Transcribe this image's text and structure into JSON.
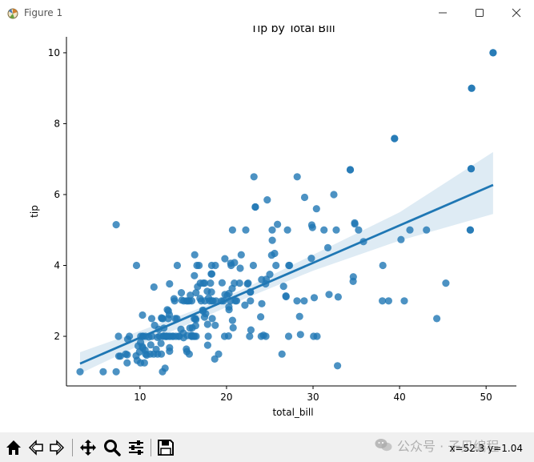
{
  "window": {
    "title": "Figure 1"
  },
  "watermark": {
    "text": "公众号 · 子贝编程"
  },
  "toolbar": {
    "buttons": [
      {
        "name": "home-button",
        "icon": "home-icon"
      },
      {
        "name": "back-button",
        "icon": "back-arrow-icon"
      },
      {
        "name": "forward-button",
        "icon": "forward-arrow-icon"
      },
      {
        "name": "pan-button",
        "icon": "pan-move-icon"
      },
      {
        "name": "zoom-button",
        "icon": "zoom-magnifier-icon"
      },
      {
        "name": "configure-subplots-button",
        "icon": "sliders-icon"
      },
      {
        "name": "save-button",
        "icon": "save-disk-icon"
      }
    ],
    "coords": "x=52.3 y=1.04"
  },
  "chart_data": {
    "type": "scatter",
    "title": "Tip by Total Bill",
    "xlabel": "total_bill",
    "ylabel": "tip",
    "xlim": [
      1.5,
      53.5
    ],
    "ylim": [
      0.6,
      10.45
    ],
    "xticks": [
      10,
      20,
      30,
      40,
      50
    ],
    "yticks": [
      2,
      4,
      6,
      8,
      10
    ],
    "grid": false,
    "point_color": "#1f77b4",
    "regression": {
      "x": [
        3.07,
        50.81
      ],
      "y": [
        1.23,
        6.27
      ]
    },
    "confidence_band": {
      "x": [
        3.07,
        10,
        17.5,
        22.5,
        30,
        40,
        50.81
      ],
      "lower": [
        0.95,
        1.75,
        2.55,
        3.1,
        3.85,
        4.7,
        5.45
      ],
      "upper": [
        1.55,
        2.15,
        2.85,
        3.4,
        4.3,
        5.5,
        7.2
      ]
    },
    "points": [
      [
        50.81,
        10
      ],
      [
        48.27,
        6.73
      ],
      [
        48.17,
        5
      ],
      [
        48.33,
        9
      ],
      [
        39.42,
        7.58
      ],
      [
        34.3,
        6.7
      ],
      [
        23.33,
        5.65
      ],
      [
        22.75,
        3.25
      ],
      [
        20.65,
        3.35
      ],
      [
        24.59,
        3.61
      ],
      [
        25.29,
        4.71
      ],
      [
        8.77,
        2
      ],
      [
        26.88,
        3.12
      ],
      [
        15.04,
        1.96
      ],
      [
        14.78,
        3.23
      ],
      [
        10.27,
        1.71
      ],
      [
        35.26,
        5
      ],
      [
        15.42,
        1.57
      ],
      [
        18.43,
        3
      ],
      [
        14.83,
        3.02
      ],
      [
        21.58,
        3.92
      ],
      [
        10.33,
        1.67
      ],
      [
        16.29,
        3.71
      ],
      [
        16.97,
        3.5
      ],
      [
        20.29,
        2.75
      ],
      [
        15.77,
        2.23
      ],
      [
        39.42,
        7.58
      ],
      [
        19.82,
        3.18
      ],
      [
        17.81,
        2.34
      ],
      [
        13.37,
        2
      ],
      [
        12.69,
        2
      ],
      [
        21.7,
        4.3
      ],
      [
        19.65,
        3
      ],
      [
        9.55,
        1.45
      ],
      [
        18.35,
        2.5
      ],
      [
        15.06,
        3
      ],
      [
        20.69,
        2.45
      ],
      [
        17.78,
        3.27
      ],
      [
        24.06,
        3.6
      ],
      [
        16.31,
        2
      ],
      [
        16.93,
        3.07
      ],
      [
        18.69,
        2.31
      ],
      [
        31.27,
        5
      ],
      [
        16.04,
        2.24
      ],
      [
        17.46,
        2.54
      ],
      [
        13.94,
        3.06
      ],
      [
        9.68,
        1.32
      ],
      [
        30.4,
        5.6
      ],
      [
        18.29,
        3
      ],
      [
        22.23,
        5
      ],
      [
        32.4,
        6
      ],
      [
        28.55,
        2.05
      ],
      [
        18.04,
        3
      ],
      [
        12.54,
        2.5
      ],
      [
        10.29,
        2.6
      ],
      [
        34.81,
        5.2
      ],
      [
        9.94,
        1.56
      ],
      [
        25.56,
        4.34
      ],
      [
        19.49,
        3.51
      ],
      [
        38.01,
        3
      ],
      [
        26.41,
        1.5
      ],
      [
        11.24,
        1.76
      ],
      [
        48.27,
        6.73
      ],
      [
        20.29,
        3.21
      ],
      [
        13.81,
        2
      ],
      [
        11.02,
        1.98
      ],
      [
        18.29,
        3.76
      ],
      [
        17.59,
        2.64
      ],
      [
        20.08,
        3.15
      ],
      [
        16.45,
        2.47
      ],
      [
        3.07,
        1
      ],
      [
        20.23,
        2.01
      ],
      [
        15.01,
        2.09
      ],
      [
        12.02,
        1.97
      ],
      [
        17.07,
        3
      ],
      [
        26.86,
        3.14
      ],
      [
        25.28,
        5
      ],
      [
        14.73,
        2.2
      ],
      [
        10.51,
        1.25
      ],
      [
        17.92,
        3.08
      ],
      [
        27.2,
        4
      ],
      [
        22.76,
        3
      ],
      [
        17.29,
        2.71
      ],
      [
        19.44,
        3
      ],
      [
        16.66,
        3.4
      ],
      [
        10.07,
        1.83
      ],
      [
        32.68,
        5
      ],
      [
        15.98,
        2.03
      ],
      [
        34.83,
        5.17
      ],
      [
        13.03,
        2
      ],
      [
        18.28,
        4
      ],
      [
        24.71,
        5.85
      ],
      [
        21.16,
        3
      ],
      [
        28.97,
        3
      ],
      [
        22.49,
        3.5
      ],
      [
        5.75,
        1
      ],
      [
        16.32,
        4.3
      ],
      [
        22.75,
        3.25
      ],
      [
        40.17,
        4.73
      ],
      [
        27.28,
        4
      ],
      [
        12.03,
        1.5
      ],
      [
        21.01,
        3
      ],
      [
        12.46,
        1.5
      ],
      [
        11.35,
        2.5
      ],
      [
        15.38,
        3
      ],
      [
        44.3,
        2.5
      ],
      [
        22.42,
        3.48
      ],
      [
        20.92,
        4.08
      ],
      [
        15.36,
        1.64
      ],
      [
        20.49,
        4.06
      ],
      [
        25.21,
        4.29
      ],
      [
        18.24,
        3.76
      ],
      [
        14.31,
        4
      ],
      [
        14,
        3
      ],
      [
        7.25,
        1
      ],
      [
        38.07,
        4
      ],
      [
        23.95,
        2.55
      ],
      [
        25.71,
        4
      ],
      [
        17.31,
        3.5
      ],
      [
        29.93,
        5.07
      ],
      [
        10.65,
        1.5
      ],
      [
        12.43,
        1.8
      ],
      [
        24.08,
        2.92
      ],
      [
        11.69,
        2.31
      ],
      [
        13.42,
        1.68
      ],
      [
        14.26,
        2.5
      ],
      [
        15.95,
        2
      ],
      [
        12.48,
        2.52
      ],
      [
        29.8,
        4.2
      ],
      [
        8.52,
        1.48
      ],
      [
        14.52,
        2
      ],
      [
        11.38,
        2
      ],
      [
        22.82,
        2.18
      ],
      [
        19.08,
        1.5
      ],
      [
        20.27,
        2.83
      ],
      [
        11.17,
        1.5
      ],
      [
        12.26,
        2
      ],
      [
        18.26,
        3.25
      ],
      [
        8.51,
        1.25
      ],
      [
        10.33,
        2
      ],
      [
        14.15,
        2
      ],
      [
        16,
        2
      ],
      [
        13.16,
        2.75
      ],
      [
        17.47,
        3.5
      ],
      [
        34.3,
        6.7
      ],
      [
        41.19,
        5
      ],
      [
        27.05,
        5
      ],
      [
        16.43,
        2.3
      ],
      [
        8.35,
        1.5
      ],
      [
        18.64,
        1.36
      ],
      [
        11.87,
        1.63
      ],
      [
        9.78,
        1.73
      ],
      [
        7.51,
        2
      ],
      [
        14.07,
        2.5
      ],
      [
        13.13,
        2
      ],
      [
        17.26,
        2.74
      ],
      [
        24.55,
        2
      ],
      [
        19.77,
        2
      ],
      [
        29.85,
        5.14
      ],
      [
        48.17,
        5
      ],
      [
        25,
        3.75
      ],
      [
        13.39,
        2.61
      ],
      [
        16.49,
        2
      ],
      [
        21.5,
        3.5
      ],
      [
        12.66,
        2.5
      ],
      [
        16.21,
        2
      ],
      [
        13.81,
        2
      ],
      [
        17.51,
        3
      ],
      [
        24.52,
        3.48
      ],
      [
        20.76,
        2.24
      ],
      [
        31.71,
        4.5
      ],
      [
        10.59,
        1.61
      ],
      [
        10.63,
        2
      ],
      [
        50.81,
        10
      ],
      [
        15.81,
        3.16
      ],
      [
        7.25,
        5.15
      ],
      [
        31.85,
        3.18
      ],
      [
        16.82,
        4
      ],
      [
        32.9,
        3.11
      ],
      [
        17.89,
        2
      ],
      [
        14.48,
        2
      ],
      [
        9.6,
        4
      ],
      [
        34.63,
        3.55
      ],
      [
        34.65,
        3.68
      ],
      [
        23.33,
        5.65
      ],
      [
        45.35,
        3.5
      ],
      [
        23.17,
        6.5
      ],
      [
        40.55,
        3
      ],
      [
        20.69,
        5
      ],
      [
        20.9,
        3.5
      ],
      [
        30.46,
        2
      ],
      [
        18.15,
        3.5
      ],
      [
        23.1,
        4
      ],
      [
        15.69,
        1.5
      ],
      [
        19.81,
        4.19
      ],
      [
        28.44,
        2.56
      ],
      [
        15.48,
        2.02
      ],
      [
        16.58,
        4
      ],
      [
        7.56,
        1.44
      ],
      [
        10.34,
        2
      ],
      [
        43.11,
        5
      ],
      [
        13,
        2
      ],
      [
        13.51,
        2
      ],
      [
        18.71,
        4
      ],
      [
        12.74,
        2.01
      ],
      [
        13,
        2
      ],
      [
        16.4,
        2.5
      ],
      [
        20.53,
        4
      ],
      [
        16.47,
        3.23
      ],
      [
        26.59,
        3.41
      ],
      [
        38.73,
        3
      ],
      [
        24.27,
        2.03
      ],
      [
        12.76,
        2.23
      ],
      [
        30.06,
        2
      ],
      [
        25.89,
        5.16
      ],
      [
        48.33,
        9
      ],
      [
        13.27,
        2.5
      ],
      [
        28.17,
        6.5
      ],
      [
        12.9,
        1.1
      ],
      [
        28.15,
        3
      ],
      [
        11.59,
        1.5
      ],
      [
        7.74,
        1.44
      ],
      [
        30.14,
        3.09
      ],
      [
        12.16,
        2.2
      ],
      [
        13.42,
        3.48
      ],
      [
        8.58,
        1.92
      ],
      [
        15.98,
        3
      ],
      [
        13.42,
        1.58
      ],
      [
        16.27,
        2.5
      ],
      [
        10.09,
        2
      ],
      [
        20.45,
        3
      ],
      [
        13.28,
        2.72
      ],
      [
        22.12,
        2.88
      ],
      [
        24.01,
        2
      ],
      [
        15.69,
        3
      ],
      [
        11.61,
        3.39
      ],
      [
        10.77,
        1.47
      ],
      [
        15.53,
        3
      ],
      [
        10.07,
        1.25
      ],
      [
        12.6,
        1
      ],
      [
        32.83,
        1.17
      ],
      [
        35.83,
        4.67
      ],
      [
        29.03,
        5.92
      ],
      [
        27.18,
        2
      ],
      [
        22.67,
        2
      ],
      [
        17.82,
        1.75
      ],
      [
        18.78,
        3
      ]
    ]
  }
}
